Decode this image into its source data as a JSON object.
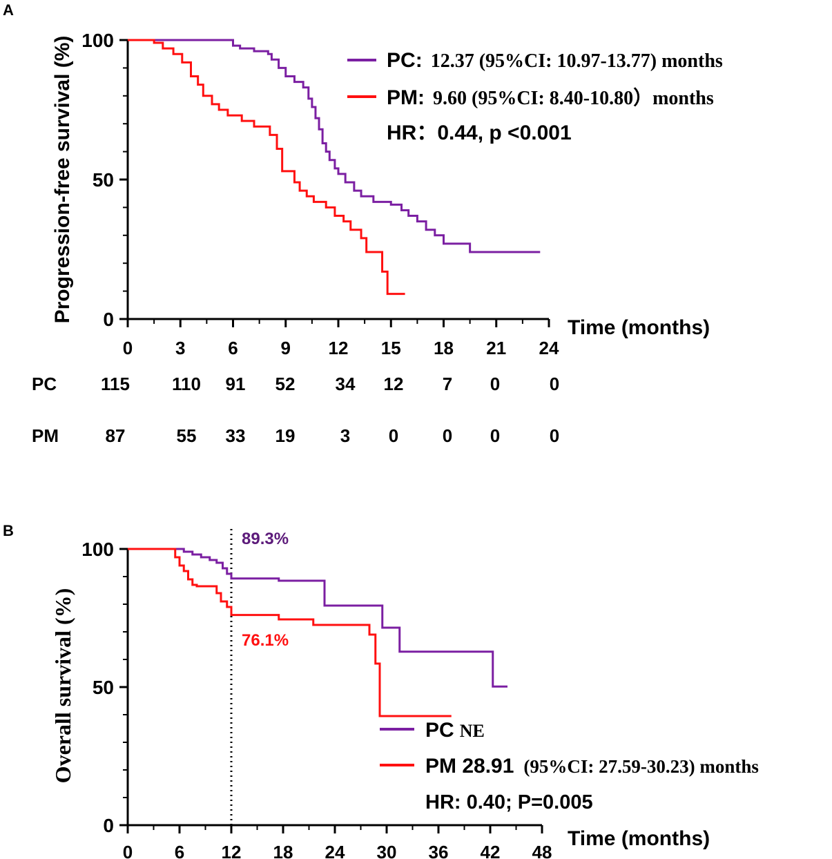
{
  "colors": {
    "pc": "#7b1fa2",
    "pm": "#ff1010",
    "axis": "#000000",
    "annotation_pc": "#5c1a7a"
  },
  "chart_data": [
    {
      "panel": "A",
      "type": "line",
      "subtype": "kaplan-meier",
      "ylabel": "Progression-free survival (%)",
      "xlabel": "Time (months)",
      "xlim": [
        0,
        24
      ],
      "ylim": [
        0,
        100
      ],
      "xticks": [
        "0",
        "3",
        "6",
        "9",
        "12",
        "15",
        "18",
        "21",
        "24"
      ],
      "yticks": [
        "0",
        "50",
        "100"
      ],
      "series": [
        {
          "name": "PC",
          "color": "#7b1fa2",
          "x": [
            0,
            5.7,
            6.0,
            6.4,
            7.2,
            8.0,
            8.2,
            8.6,
            9.0,
            9.5,
            10.0,
            10.3,
            10.5,
            10.7,
            10.9,
            11.1,
            11.3,
            11.5,
            11.8,
            12.0,
            12.4,
            12.9,
            13.3,
            14.0,
            15.0,
            15.6,
            16.0,
            16.5,
            17.0,
            17.5,
            18.0,
            19.5,
            23.5
          ],
          "y": [
            100,
            100,
            98,
            97,
            96,
            95,
            93,
            90,
            87,
            85,
            83,
            79,
            76,
            72,
            68,
            63,
            60,
            57,
            54,
            52,
            49,
            46,
            44,
            42,
            41,
            39,
            37,
            35,
            32,
            30,
            27,
            24,
            24
          ]
        },
        {
          "name": "PM",
          "color": "#ff1010",
          "x": [
            0,
            1.5,
            2.0,
            2.6,
            3.1,
            3.6,
            4.0,
            4.3,
            4.8,
            5.2,
            5.7,
            6.5,
            7.2,
            8.1,
            8.5,
            8.8,
            9.5,
            9.8,
            10.2,
            10.6,
            11.3,
            11.8,
            12.3,
            12.7,
            13.3,
            13.6,
            14.5,
            14.8,
            15.8
          ],
          "y": [
            100,
            99,
            97,
            95,
            92,
            87,
            84,
            80,
            77,
            75,
            73,
            71,
            69,
            66,
            61,
            53,
            49,
            46,
            44,
            42,
            40,
            37,
            35,
            32,
            29,
            24,
            17,
            9,
            9
          ]
        }
      ],
      "legend": [
        {
          "label": "PC",
          "text": "12.37  (95%CI: 10.97-13.77) months"
        },
        {
          "label": "PM",
          "text": "9.60  (95%CI: 8.40-10.80）months"
        }
      ],
      "legend_label_separator": ":",
      "hr_text": "HR：0.44, p <0.001",
      "risk_table": {
        "columns": [
          "0",
          "3",
          "6",
          "9",
          "12",
          "15",
          "18",
          "21",
          "24"
        ],
        "rows": [
          {
            "label": "PC",
            "values": [
              "115",
              "110",
              "91",
              "52",
              "34",
              "12",
              "7",
              "0",
              "0"
            ]
          },
          {
            "label": "PM",
            "values": [
              "87",
              "55",
              "33",
              "19",
              "3",
              "0",
              "0",
              "0",
              "0"
            ]
          }
        ]
      }
    },
    {
      "panel": "B",
      "type": "line",
      "subtype": "kaplan-meier",
      "ylabel": "Overall survival (%)",
      "xlabel": "Time (months)",
      "xlim": [
        0,
        48
      ],
      "ylim": [
        0,
        100
      ],
      "xticks": [
        "0",
        "6",
        "12",
        "18",
        "24",
        "30",
        "36",
        "42",
        "48"
      ],
      "yticks": [
        "0",
        "50",
        "100"
      ],
      "vline_x": 12,
      "series": [
        {
          "name": "PC",
          "color": "#7b1fa2",
          "x": [
            0,
            6.5,
            7.5,
            8.5,
            9.5,
            10.3,
            11.0,
            11.5,
            12.0,
            17.5,
            22.8,
            29.5,
            31.5,
            42.3,
            44.0
          ],
          "y": [
            100,
            99,
            98,
            97,
            96,
            95,
            93,
            91,
            89.3,
            88.5,
            79.5,
            71.5,
            62.8,
            50.2,
            50.2
          ]
        },
        {
          "name": "PM",
          "color": "#ff1010",
          "x": [
            0,
            5.5,
            6.0,
            6.5,
            7.0,
            7.5,
            8.0,
            10.3,
            10.8,
            11.5,
            12.0,
            17.5,
            21.5,
            28.0,
            28.7,
            29.2,
            37.5
          ],
          "y": [
            100,
            97,
            94,
            92,
            89,
            87,
            86.5,
            84,
            81,
            79,
            76.1,
            74.5,
            72.5,
            69,
            58.5,
            39.5,
            39.5
          ]
        }
      ],
      "annotations": [
        {
          "text": "89.3%",
          "series": "PC",
          "x": 12,
          "y": 89.3
        },
        {
          "text": "76.1%",
          "series": "PM",
          "x": 12,
          "y": 76.1
        }
      ],
      "legend": [
        {
          "label": "PC",
          "text": "NE"
        },
        {
          "label": "PM 28.91",
          "text": "(95%CI: 27.59-30.23) months"
        }
      ],
      "hr_text": "HR: 0.40; P=0.005"
    }
  ],
  "panel_labels": [
    "A",
    "B"
  ]
}
